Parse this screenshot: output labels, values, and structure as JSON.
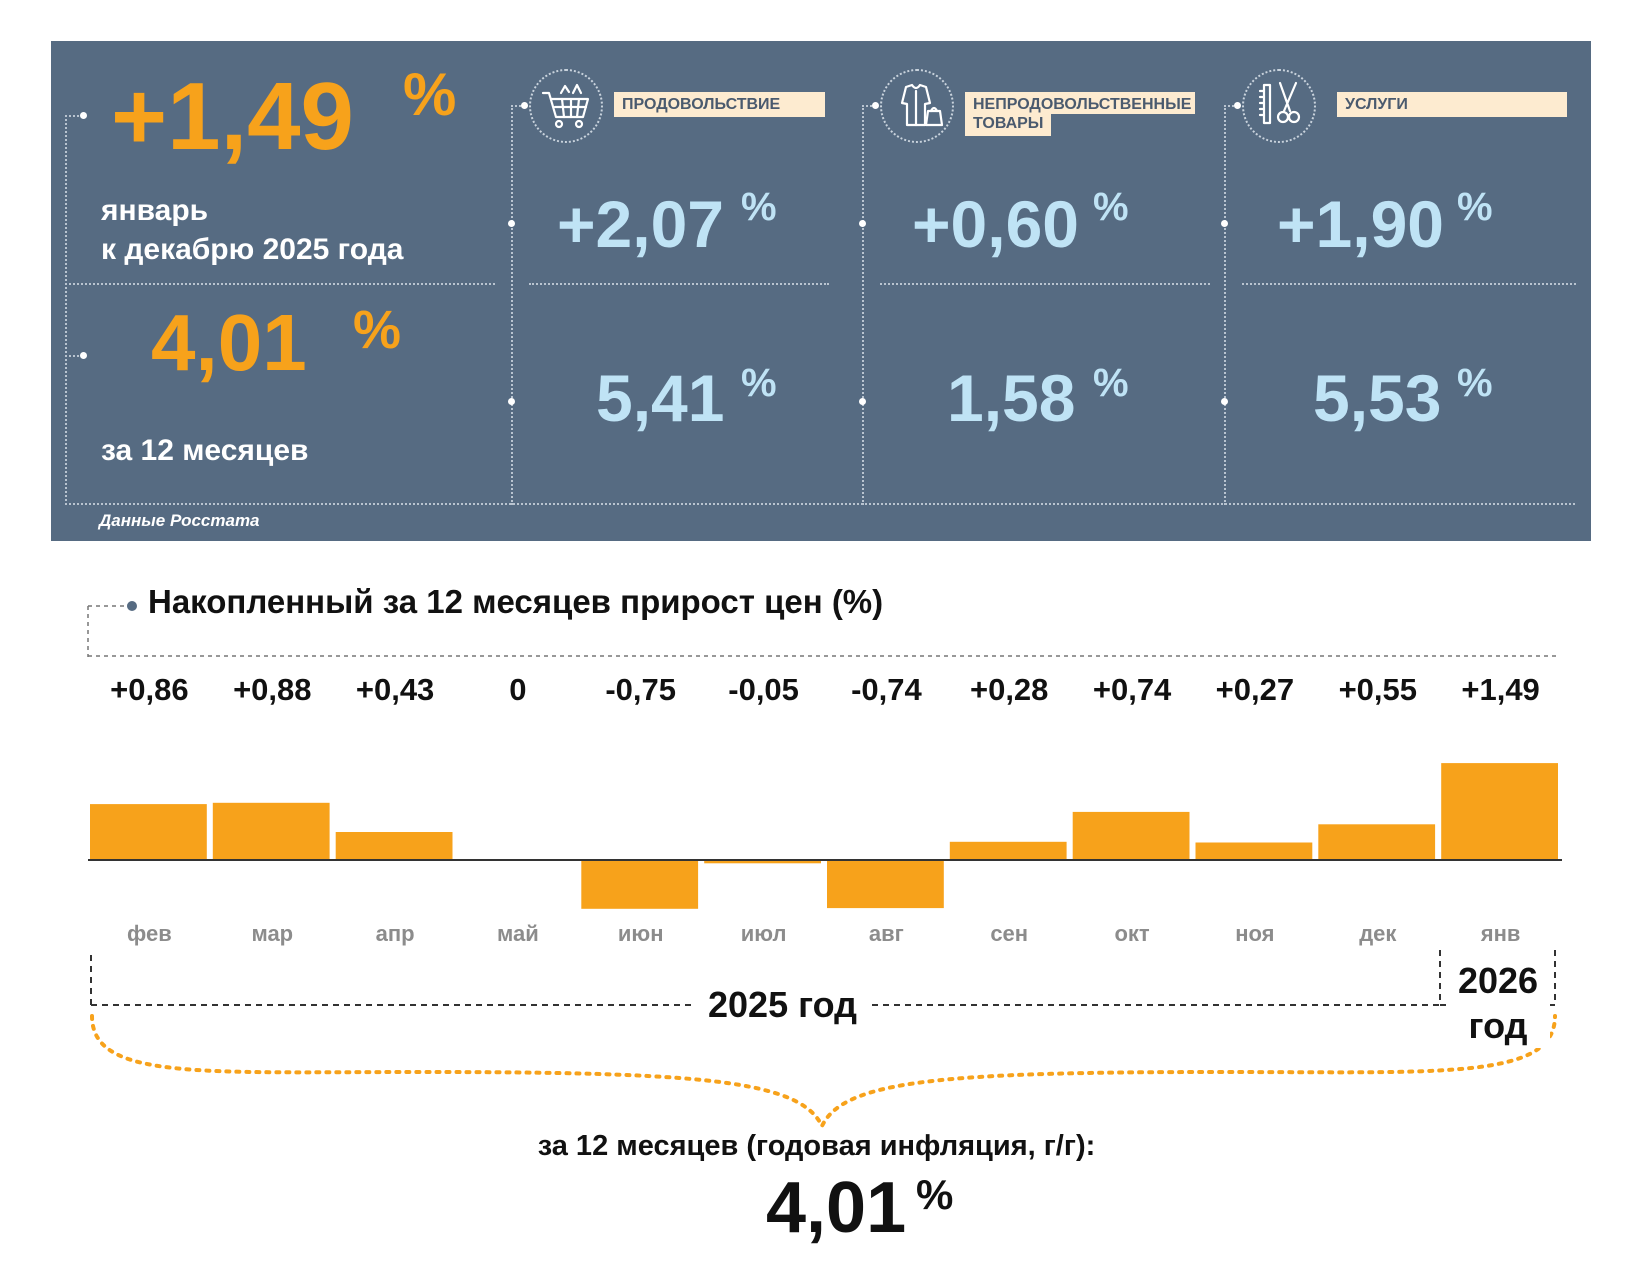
{
  "summary": {
    "monthly": {
      "value": "+1,49",
      "unit": "%",
      "label_line1": "январь",
      "label_line2": "к декабрю 2025 года"
    },
    "annual": {
      "value": "4,01",
      "unit": "%",
      "label": "за 12 месяцев"
    },
    "source": "Данные Росстата"
  },
  "categories": [
    {
      "name": "ПРОДОВОЛЬСТВИЕ",
      "icon": "shopping-cart-icon",
      "monthly": "+2,07",
      "annual": "5,41",
      "unit": "%"
    },
    {
      "name_line1": "НЕПРОДОВОЛЬСТВЕННЫЕ",
      "name_line2": "ТОВАРЫ",
      "icon": "clothes-icon",
      "monthly": "+0,60",
      "annual": "1,58",
      "unit": "%"
    },
    {
      "name": "УСЛУГИ",
      "icon": "scissors-comb-icon",
      "monthly": "+1,90",
      "annual": "5,53",
      "unit": "%"
    }
  ],
  "chart_data": {
    "type": "bar",
    "title": "Накопленный за 12 месяцев прирост цен (%)",
    "categories": [
      "фев",
      "мар",
      "апр",
      "май",
      "июн",
      "июл",
      "авг",
      "сен",
      "окт",
      "ноя",
      "дек",
      "янв"
    ],
    "values": [
      0.86,
      0.88,
      0.43,
      0,
      -0.75,
      -0.05,
      -0.74,
      0.28,
      0.74,
      0.27,
      0.55,
      1.49
    ],
    "value_labels": [
      "+0,86",
      "+0,88",
      "+0,43",
      "0",
      "-0,75",
      "-0,05",
      "-0,74",
      "+0,28",
      "+0,74",
      "+0,27",
      "+0,55",
      "+1,49"
    ],
    "bar_color": "#f7a21b",
    "year_groups": [
      {
        "label": "2025 год"
      },
      {
        "label_line1": "2026",
        "label_line2": "год"
      }
    ],
    "annual_caption": "за 12 месяцев (годовая инфляция, г/г):",
    "annual_value": "4,01",
    "annual_unit": "%"
  }
}
